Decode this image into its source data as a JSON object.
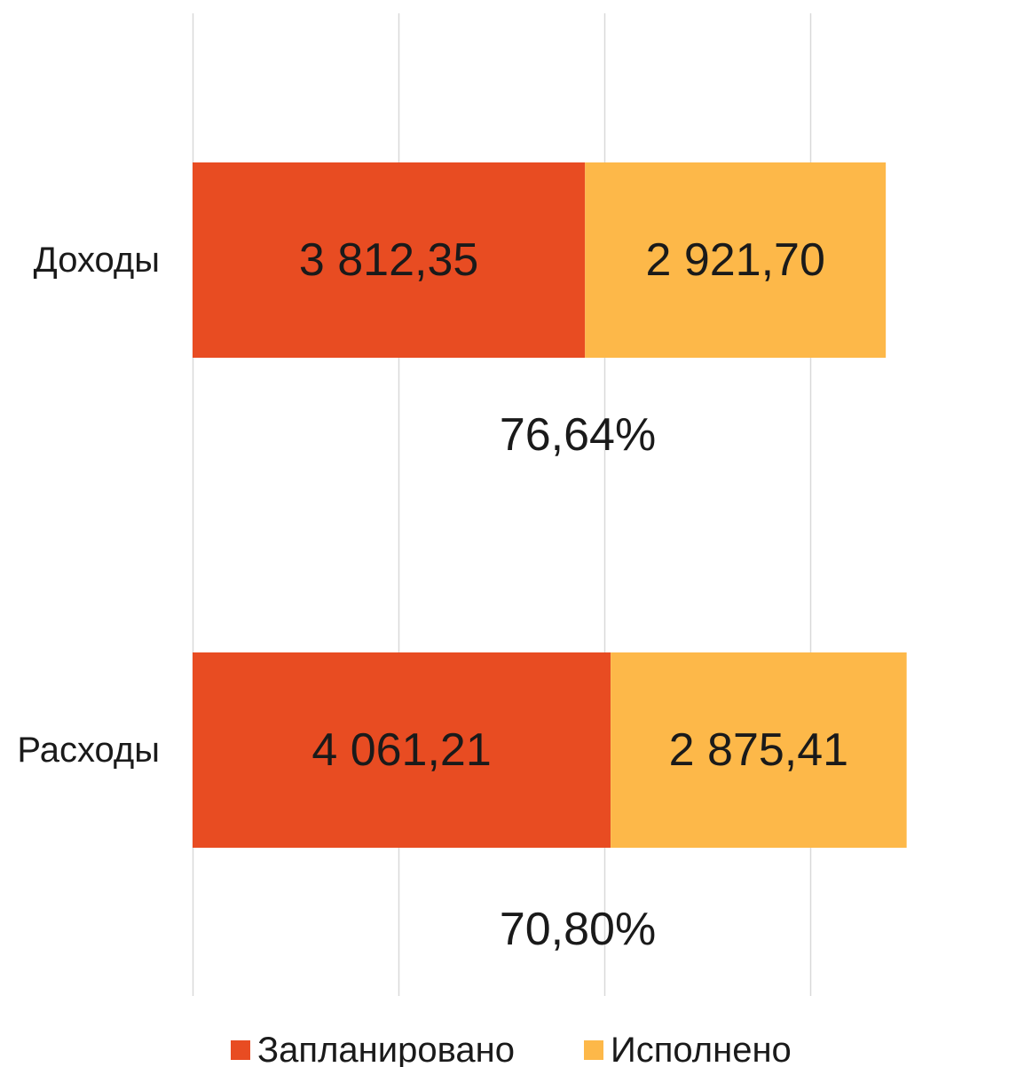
{
  "chart_data": {
    "type": "bar",
    "orientation": "horizontal",
    "stacked": true,
    "categories": [
      "Доходы",
      "Расходы"
    ],
    "series": [
      {
        "name": "Запланировано",
        "color": "#e84c22",
        "values": [
          3812.35,
          4061.21
        ],
        "labels": [
          "3 812,35",
          "4 061,21"
        ]
      },
      {
        "name": "Исполнено",
        "color": "#fdb849",
        "values": [
          2921.7,
          2875.41
        ],
        "labels": [
          "2 921,70",
          "2 875,41"
        ]
      }
    ],
    "annotations": [
      "76,64%",
      "70,80%"
    ],
    "xlim": [
      0,
      8000
    ],
    "grid": true,
    "legend": "bottom",
    "title": "",
    "xlabel": "",
    "ylabel": ""
  }
}
